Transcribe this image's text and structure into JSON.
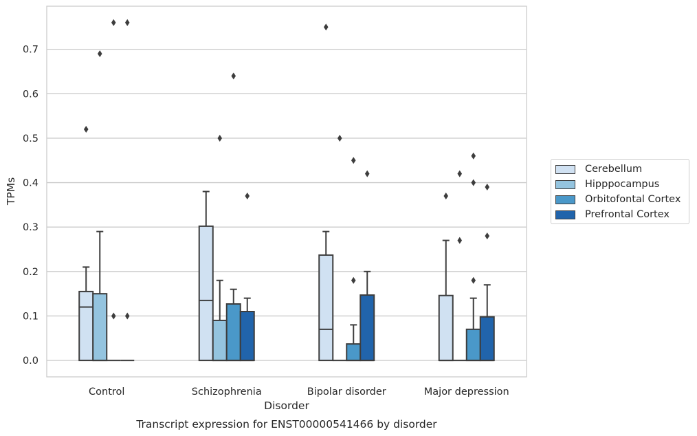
{
  "caption": "Transcript expression for ENST00000541466 by disorder",
  "colors": {
    "Cerebellum": "#d0e1f2",
    "Hipppocampus": "#94c4df",
    "Orbitofontal Cortex": "#4a98c9",
    "Prefrontal Cortex": "#2164ab",
    "edge": "#3d3d3d",
    "grid": "#cccccc",
    "outlier": "#3d3d3d"
  },
  "chart_data": {
    "type": "box",
    "xlabel": "Disorder",
    "ylabel": "TPMs",
    "ylim": [
      -0.037,
      0.797
    ],
    "yticks": [
      "0.0",
      "0.1",
      "0.2",
      "0.3",
      "0.4",
      "0.5",
      "0.6",
      "0.7"
    ],
    "grid": "horizontal",
    "legend_position": "right",
    "categories": [
      "Control",
      "Schizophrenia",
      "Bipolar disorder",
      "Major depression"
    ],
    "series": [
      {
        "name": "Cerebellum",
        "boxes": [
          {
            "q1": 0,
            "median": 0.12,
            "q3": 0.155,
            "whisker_low": 0,
            "whisker_high": 0.21,
            "outliers": [
              0.52
            ]
          },
          {
            "q1": 0,
            "median": 0.135,
            "q3": 0.302,
            "whisker_low": 0,
            "whisker_high": 0.38,
            "outliers": []
          },
          {
            "q1": 0,
            "median": 0.07,
            "q3": 0.237,
            "whisker_low": 0,
            "whisker_high": 0.29,
            "outliers": [
              0.75
            ]
          },
          {
            "q1": 0,
            "median": 0,
            "q3": 0.146,
            "whisker_low": 0,
            "whisker_high": 0.27,
            "outliers": [
              0.37
            ]
          }
        ]
      },
      {
        "name": "Hipppocampus",
        "boxes": [
          {
            "q1": 0,
            "median": 0,
            "q3": 0.15,
            "whisker_low": 0,
            "whisker_high": 0.29,
            "outliers": [
              0.69
            ]
          },
          {
            "q1": 0,
            "median": 0,
            "q3": 0.09,
            "whisker_low": 0,
            "whisker_high": 0.18,
            "outliers": [
              0.5
            ]
          },
          {
            "q1": 0,
            "median": 0,
            "q3": 0,
            "whisker_low": 0,
            "whisker_high": 0,
            "outliers": [
              0.5
            ]
          },
          {
            "q1": 0,
            "median": 0,
            "q3": 0,
            "whisker_low": 0,
            "whisker_high": 0,
            "outliers": [
              0.27,
              0.42
            ]
          }
        ]
      },
      {
        "name": "Orbitofontal Cortex",
        "boxes": [
          {
            "q1": 0,
            "median": 0,
            "q3": 0,
            "whisker_low": 0,
            "whisker_high": 0,
            "outliers": [
              0.1,
              0.76
            ]
          },
          {
            "q1": 0,
            "median": 0,
            "q3": 0.127,
            "whisker_low": 0,
            "whisker_high": 0.16,
            "outliers": [
              0.64
            ]
          },
          {
            "q1": 0,
            "median": 0,
            "q3": 0.037,
            "whisker_low": 0,
            "whisker_high": 0.08,
            "outliers": [
              0.18,
              0.45
            ]
          },
          {
            "q1": 0,
            "median": 0,
            "q3": 0.07,
            "whisker_low": 0,
            "whisker_high": 0.14,
            "outliers": [
              0.18,
              0.4,
              0.46
            ]
          }
        ]
      },
      {
        "name": "Prefrontal Cortex",
        "boxes": [
          {
            "q1": 0,
            "median": 0,
            "q3": 0,
            "whisker_low": 0,
            "whisker_high": 0,
            "outliers": [
              0.1,
              0.76
            ]
          },
          {
            "q1": 0,
            "median": 0,
            "q3": 0.11,
            "whisker_low": 0,
            "whisker_high": 0.14,
            "outliers": [
              0.37
            ]
          },
          {
            "q1": 0,
            "median": 0,
            "q3": 0.147,
            "whisker_low": 0,
            "whisker_high": 0.2,
            "outliers": [
              0.42
            ]
          },
          {
            "q1": 0,
            "median": 0,
            "q3": 0.098,
            "whisker_low": 0,
            "whisker_high": 0.17,
            "outliers": [
              0.28,
              0.39
            ]
          }
        ]
      }
    ]
  }
}
